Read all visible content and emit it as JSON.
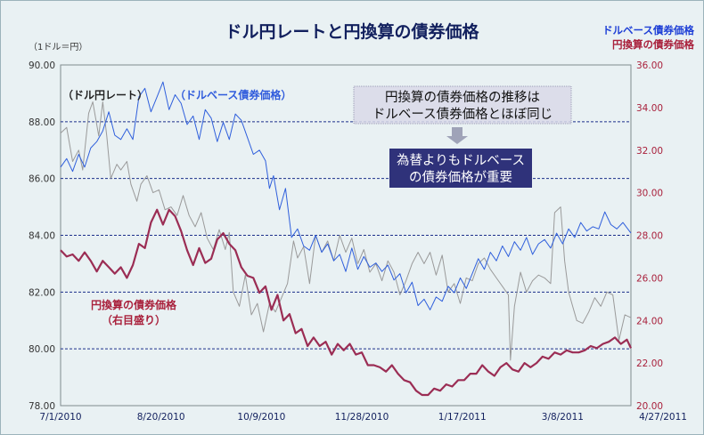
{
  "chart_data": {
    "type": "line",
    "title": "ドル円レートと円換算の債券価格",
    "left_axis_unit": "（1ドル＝円）",
    "legend": [
      "ドルベース債券価格",
      "円換算の債券価格"
    ],
    "ylim_left": [
      78,
      90
    ],
    "ylim_right": [
      20,
      36
    ],
    "left_ticks": [
      "90.00",
      "88.00",
      "86.00",
      "84.00",
      "82.00",
      "80.00",
      "78.00"
    ],
    "right_ticks": [
      "36.00",
      "34.00",
      "32.00",
      "30.00",
      "28.00",
      "26.00",
      "24.00",
      "22.00",
      "20.00"
    ],
    "x_ticks": [
      "7/1/2010",
      "8/20/2010",
      "10/9/2010",
      "11/28/2010",
      "1/17/2011",
      "3/8/2011",
      "4/27/2011"
    ],
    "gridlines_left": [
      88,
      86,
      84,
      82,
      80
    ],
    "annotations": {
      "fx_label": "（ドル円レート）",
      "usd_bond_label": "（ドルベース債券価格）",
      "yen_bond_label_1": "円換算の債券価格",
      "yen_bond_label_2": "（右目盛り）",
      "note_1_line1": "円換算の債券価格の推移は",
      "note_1_line2": "ドルベース債券価格とほぼ同じ",
      "note_2_line1": "為替よりもドルベース",
      "note_2_line2": "の債券価格が重要"
    },
    "series": [
      {
        "name": "ドル円レート",
        "axis": "left",
        "color": "#9a9a9a",
        "points": [
          [
            0,
            87.6
          ],
          [
            3,
            87.8
          ],
          [
            6,
            86.6
          ],
          [
            9,
            87.0
          ],
          [
            11,
            86.3
          ],
          [
            14,
            88.3
          ],
          [
            16,
            88.7
          ],
          [
            19,
            87.5
          ],
          [
            21,
            88.7
          ],
          [
            23,
            87.5
          ],
          [
            25,
            86.0
          ],
          [
            28,
            86.5
          ],
          [
            30,
            86.3
          ],
          [
            33,
            86.6
          ],
          [
            35,
            85.8
          ],
          [
            38,
            85.2
          ],
          [
            40,
            85.8
          ],
          [
            43,
            86.1
          ],
          [
            46,
            85.5
          ],
          [
            49,
            85.6
          ],
          [
            52,
            84.9
          ],
          [
            55,
            85.0
          ],
          [
            58,
            84.7
          ],
          [
            61,
            85.4
          ],
          [
            64,
            84.7
          ],
          [
            67,
            84.3
          ],
          [
            70,
            84.8
          ],
          [
            73,
            83.9
          ],
          [
            76,
            83.5
          ],
          [
            79,
            84.2
          ],
          [
            82,
            83.5
          ],
          [
            84,
            84.1
          ],
          [
            86,
            82.0
          ],
          [
            89,
            81.5
          ],
          [
            92,
            82.6
          ],
          [
            95,
            81.2
          ],
          [
            98,
            81.6
          ],
          [
            101,
            80.6
          ],
          [
            104,
            81.6
          ],
          [
            107,
            81.3
          ],
          [
            110,
            81.8
          ],
          [
            113,
            82.3
          ],
          [
            116,
            83.8
          ],
          [
            118,
            83.2
          ],
          [
            121,
            83.6
          ],
          [
            124,
            82.3
          ],
          [
            127,
            84.0
          ],
          [
            130,
            83.4
          ],
          [
            133,
            83.8
          ],
          [
            136,
            83.1
          ],
          [
            139,
            84.0
          ],
          [
            142,
            83.4
          ],
          [
            145,
            83.9
          ],
          [
            148,
            83.0
          ],
          [
            151,
            83.5
          ],
          [
            154,
            82.7
          ],
          [
            157,
            83.0
          ],
          [
            160,
            82.4
          ],
          [
            163,
            83.1
          ],
          [
            166,
            82.7
          ],
          [
            169,
            81.9
          ],
          [
            172,
            82.4
          ],
          [
            175,
            83.0
          ],
          [
            178,
            83.4
          ],
          [
            181,
            83.0
          ],
          [
            184,
            83.4
          ],
          [
            187,
            82.6
          ],
          [
            190,
            83.3
          ],
          [
            193,
            82.0
          ],
          [
            196,
            82.3
          ],
          [
            199,
            81.6
          ],
          [
            202,
            82.5
          ],
          [
            205,
            82.4
          ],
          [
            208,
            83.0
          ],
          [
            211,
            83.2
          ],
          [
            214,
            82.8
          ],
          [
            217,
            82.5
          ],
          [
            220,
            82.2
          ],
          [
            223,
            81.9
          ],
          [
            224,
            79.6
          ],
          [
            226,
            81.5
          ],
          [
            229,
            82.7
          ],
          [
            232,
            82.0
          ],
          [
            235,
            82.4
          ],
          [
            238,
            82.6
          ],
          [
            241,
            82.5
          ],
          [
            244,
            82.3
          ],
          [
            246,
            84.8
          ],
          [
            249,
            85.0
          ],
          [
            251,
            83.1
          ],
          [
            253,
            82.0
          ],
          [
            255,
            81.5
          ],
          [
            257,
            81.0
          ],
          [
            260,
            80.9
          ],
          [
            263,
            81.3
          ],
          [
            266,
            81.8
          ],
          [
            269,
            81.5
          ],
          [
            272,
            82.0
          ],
          [
            275,
            81.9
          ],
          [
            278,
            80.3
          ],
          [
            281,
            81.2
          ],
          [
            284,
            81.1
          ]
        ]
      },
      {
        "name": "ドルベース債券価格",
        "axis": "right",
        "color": "#2f5fdc",
        "points": [
          [
            0,
            31.2
          ],
          [
            3,
            31.6
          ],
          [
            6,
            31.0
          ],
          [
            9,
            31.8
          ],
          [
            12,
            31.2
          ],
          [
            15,
            32.1
          ],
          [
            18,
            32.4
          ],
          [
            21,
            32.9
          ],
          [
            24,
            33.8
          ],
          [
            27,
            32.7
          ],
          [
            30,
            32.5
          ],
          [
            33,
            33.0
          ],
          [
            36,
            32.5
          ],
          [
            39,
            34.5
          ],
          [
            42,
            34.9
          ],
          [
            45,
            33.8
          ],
          [
            48,
            34.5
          ],
          [
            51,
            35.2
          ],
          [
            54,
            33.9
          ],
          [
            57,
            34.6
          ],
          [
            60,
            34.2
          ],
          [
            63,
            33.2
          ],
          [
            66,
            33.6
          ],
          [
            69,
            32.5
          ],
          [
            72,
            33.9
          ],
          [
            75,
            33.5
          ],
          [
            78,
            32.4
          ],
          [
            81,
            33.3
          ],
          [
            84,
            32.5
          ],
          [
            87,
            33.7
          ],
          [
            90,
            33.4
          ],
          [
            93,
            32.6
          ],
          [
            96,
            31.8
          ],
          [
            99,
            32.0
          ],
          [
            102,
            31.5
          ],
          [
            104,
            30.2
          ],
          [
            106,
            30.8
          ],
          [
            109,
            29.2
          ],
          [
            112,
            30.2
          ],
          [
            115,
            27.9
          ],
          [
            118,
            28.3
          ],
          [
            121,
            27.5
          ],
          [
            124,
            27.3
          ],
          [
            127,
            28.0
          ],
          [
            130,
            27.2
          ],
          [
            133,
            27.6
          ],
          [
            136,
            26.8
          ],
          [
            139,
            27.1
          ],
          [
            142,
            26.3
          ],
          [
            145,
            27.4
          ],
          [
            148,
            26.4
          ],
          [
            151,
            27.0
          ],
          [
            154,
            26.5
          ],
          [
            157,
            26.7
          ],
          [
            160,
            26.3
          ],
          [
            163,
            26.6
          ],
          [
            166,
            25.9
          ],
          [
            169,
            26.2
          ],
          [
            172,
            25.3
          ],
          [
            175,
            25.8
          ],
          [
            178,
            24.7
          ],
          [
            181,
            25.0
          ],
          [
            184,
            24.5
          ],
          [
            187,
            25.1
          ],
          [
            190,
            24.9
          ],
          [
            193,
            25.6
          ],
          [
            196,
            25.3
          ],
          [
            199,
            26.0
          ],
          [
            202,
            25.5
          ],
          [
            205,
            26.2
          ],
          [
            208,
            26.9
          ],
          [
            211,
            26.4
          ],
          [
            214,
            27.2
          ],
          [
            217,
            26.8
          ],
          [
            220,
            27.5
          ],
          [
            223,
            27.0
          ],
          [
            226,
            27.7
          ],
          [
            229,
            27.3
          ],
          [
            232,
            27.9
          ],
          [
            235,
            27.1
          ],
          [
            238,
            27.6
          ],
          [
            241,
            27.8
          ],
          [
            244,
            27.4
          ],
          [
            247,
            28.1
          ],
          [
            250,
            27.6
          ],
          [
            253,
            28.3
          ],
          [
            256,
            27.9
          ],
          [
            259,
            28.6
          ],
          [
            262,
            28.2
          ],
          [
            265,
            28.4
          ],
          [
            268,
            28.3
          ],
          [
            271,
            29.1
          ],
          [
            274,
            28.5
          ],
          [
            277,
            28.3
          ],
          [
            280,
            28.6
          ],
          [
            284,
            28.1
          ]
        ]
      },
      {
        "name": "円換算の債券価格",
        "axis": "right",
        "color": "#9b2d54",
        "points": [
          [
            0,
            27.3
          ],
          [
            3,
            27.0
          ],
          [
            6,
            27.1
          ],
          [
            9,
            26.8
          ],
          [
            12,
            27.2
          ],
          [
            15,
            26.8
          ],
          [
            18,
            26.3
          ],
          [
            21,
            26.8
          ],
          [
            24,
            26.5
          ],
          [
            27,
            26.2
          ],
          [
            30,
            26.5
          ],
          [
            33,
            26.0
          ],
          [
            36,
            26.6
          ],
          [
            39,
            27.6
          ],
          [
            42,
            27.4
          ],
          [
            45,
            28.6
          ],
          [
            48,
            29.2
          ],
          [
            51,
            28.5
          ],
          [
            54,
            29.2
          ],
          [
            57,
            28.9
          ],
          [
            60,
            28.2
          ],
          [
            63,
            27.3
          ],
          [
            66,
            26.6
          ],
          [
            69,
            27.4
          ],
          [
            72,
            26.7
          ],
          [
            75,
            26.9
          ],
          [
            78,
            27.8
          ],
          [
            81,
            28.1
          ],
          [
            84,
            27.6
          ],
          [
            87,
            27.3
          ],
          [
            90,
            26.5
          ],
          [
            93,
            26.1
          ],
          [
            96,
            26.0
          ],
          [
            99,
            25.3
          ],
          [
            102,
            25.6
          ],
          [
            105,
            24.5
          ],
          [
            108,
            25.2
          ],
          [
            111,
            24.0
          ],
          [
            114,
            24.3
          ],
          [
            117,
            23.4
          ],
          [
            120,
            23.6
          ],
          [
            123,
            22.8
          ],
          [
            126,
            23.2
          ],
          [
            129,
            22.8
          ],
          [
            132,
            23.0
          ],
          [
            135,
            22.4
          ],
          [
            138,
            22.9
          ],
          [
            141,
            22.6
          ],
          [
            144,
            22.9
          ],
          [
            147,
            22.4
          ],
          [
            150,
            22.5
          ],
          [
            153,
            21.9
          ],
          [
            156,
            21.9
          ],
          [
            159,
            21.8
          ],
          [
            162,
            21.6
          ],
          [
            165,
            21.9
          ],
          [
            168,
            21.5
          ],
          [
            171,
            21.2
          ],
          [
            174,
            21.1
          ],
          [
            177,
            20.7
          ],
          [
            180,
            20.5
          ],
          [
            183,
            20.5
          ],
          [
            186,
            20.8
          ],
          [
            189,
            20.7
          ],
          [
            192,
            21.0
          ],
          [
            195,
            20.9
          ],
          [
            198,
            21.2
          ],
          [
            201,
            21.2
          ],
          [
            204,
            21.5
          ],
          [
            207,
            21.5
          ],
          [
            210,
            21.9
          ],
          [
            213,
            21.6
          ],
          [
            216,
            21.4
          ],
          [
            219,
            21.8
          ],
          [
            222,
            22.0
          ],
          [
            225,
            21.7
          ],
          [
            228,
            21.6
          ],
          [
            231,
            22.0
          ],
          [
            234,
            21.8
          ],
          [
            237,
            22.0
          ],
          [
            240,
            22.3
          ],
          [
            243,
            22.2
          ],
          [
            246,
            22.5
          ],
          [
            249,
            22.4
          ],
          [
            252,
            22.6
          ],
          [
            255,
            22.5
          ],
          [
            258,
            22.5
          ],
          [
            261,
            22.6
          ],
          [
            264,
            22.8
          ],
          [
            267,
            22.7
          ],
          [
            270,
            22.9
          ],
          [
            273,
            23.0
          ],
          [
            276,
            23.2
          ],
          [
            279,
            22.9
          ],
          [
            282,
            23.1
          ],
          [
            284,
            22.7
          ]
        ]
      }
    ]
  }
}
